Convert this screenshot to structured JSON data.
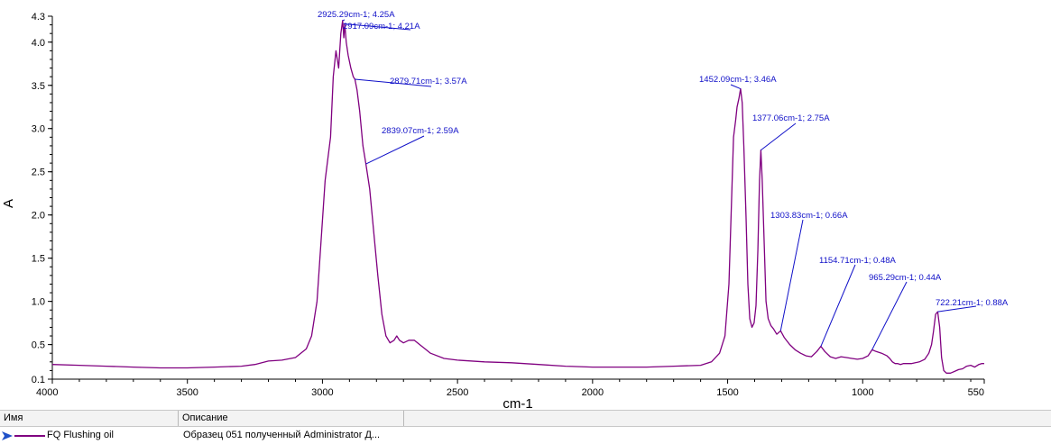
{
  "chart_data": {
    "type": "line",
    "xlabel": "cm-1",
    "ylabel": "A",
    "xlim": [
      4000,
      550
    ],
    "ylim": [
      0.1,
      4.3
    ],
    "x_reversed": true,
    "xticks": [
      "4000",
      "3500",
      "3000",
      "2500",
      "2000",
      "1500",
      "1000",
      "550"
    ],
    "xtick_values": [
      4000,
      3500,
      3000,
      2500,
      2000,
      1500,
      1000,
      550
    ],
    "yticks": [
      "0.1",
      "0.5",
      "1.0",
      "1.5",
      "2.0",
      "2.5",
      "3.0",
      "3.5",
      "4.0",
      "4.3"
    ],
    "ytick_values": [
      0.1,
      0.5,
      1.0,
      1.5,
      2.0,
      2.5,
      3.0,
      3.5,
      4.0,
      4.3
    ],
    "grid": false,
    "series": [
      {
        "name": "FQ Flushing oil",
        "color": "#800080",
        "points": [
          [
            4000,
            0.27
          ],
          [
            3900,
            0.26
          ],
          [
            3800,
            0.25
          ],
          [
            3700,
            0.24
          ],
          [
            3600,
            0.23
          ],
          [
            3500,
            0.23
          ],
          [
            3400,
            0.24
          ],
          [
            3300,
            0.25
          ],
          [
            3250,
            0.27
          ],
          [
            3200,
            0.31
          ],
          [
            3150,
            0.32
          ],
          [
            3100,
            0.35
          ],
          [
            3060,
            0.45
          ],
          [
            3040,
            0.6
          ],
          [
            3020,
            1.0
          ],
          [
            3005,
            1.7
          ],
          [
            2990,
            2.4
          ],
          [
            2970,
            2.9
          ],
          [
            2960,
            3.6
          ],
          [
            2950,
            3.9
          ],
          [
            2940,
            3.7
          ],
          [
            2932,
            4.1
          ],
          [
            2925.29,
            4.25
          ],
          [
            2921,
            4.05
          ],
          [
            2917.09,
            4.21
          ],
          [
            2912,
            4.0
          ],
          [
            2905,
            3.85
          ],
          [
            2895,
            3.7
          ],
          [
            2886,
            3.6
          ],
          [
            2879.71,
            3.57
          ],
          [
            2872,
            3.45
          ],
          [
            2862,
            3.2
          ],
          [
            2850,
            2.8
          ],
          [
            2839.07,
            2.59
          ],
          [
            2825,
            2.3
          ],
          [
            2810,
            1.8
          ],
          [
            2795,
            1.3
          ],
          [
            2780,
            0.85
          ],
          [
            2765,
            0.6
          ],
          [
            2750,
            0.52
          ],
          [
            2735,
            0.55
          ],
          [
            2725,
            0.6
          ],
          [
            2715,
            0.55
          ],
          [
            2700,
            0.52
          ],
          [
            2680,
            0.55
          ],
          [
            2660,
            0.55
          ],
          [
            2640,
            0.5
          ],
          [
            2620,
            0.45
          ],
          [
            2600,
            0.4
          ],
          [
            2550,
            0.34
          ],
          [
            2500,
            0.32
          ],
          [
            2400,
            0.3
          ],
          [
            2300,
            0.29
          ],
          [
            2200,
            0.27
          ],
          [
            2100,
            0.25
          ],
          [
            2000,
            0.24
          ],
          [
            1900,
            0.24
          ],
          [
            1800,
            0.24
          ],
          [
            1700,
            0.25
          ],
          [
            1600,
            0.26
          ],
          [
            1560,
            0.3
          ],
          [
            1530,
            0.4
          ],
          [
            1510,
            0.6
          ],
          [
            1495,
            1.2
          ],
          [
            1485,
            2.2
          ],
          [
            1478,
            2.9
          ],
          [
            1470,
            3.1
          ],
          [
            1465,
            3.25
          ],
          [
            1458,
            3.35
          ],
          [
            1452.09,
            3.46
          ],
          [
            1446,
            3.3
          ],
          [
            1440,
            2.8
          ],
          [
            1432,
            2.0
          ],
          [
            1425,
            1.2
          ],
          [
            1418,
            0.8
          ],
          [
            1410,
            0.7
          ],
          [
            1402,
            0.75
          ],
          [
            1395,
            0.95
          ],
          [
            1388,
            1.6
          ],
          [
            1382,
            2.4
          ],
          [
            1377.06,
            2.75
          ],
          [
            1372,
            2.4
          ],
          [
            1365,
            1.7
          ],
          [
            1358,
            1.0
          ],
          [
            1350,
            0.8
          ],
          [
            1340,
            0.72
          ],
          [
            1330,
            0.68
          ],
          [
            1318,
            0.62
          ],
          [
            1303.83,
            0.66
          ],
          [
            1290,
            0.58
          ],
          [
            1270,
            0.5
          ],
          [
            1250,
            0.44
          ],
          [
            1230,
            0.4
          ],
          [
            1210,
            0.37
          ],
          [
            1190,
            0.36
          ],
          [
            1170,
            0.42
          ],
          [
            1154.71,
            0.48
          ],
          [
            1140,
            0.42
          ],
          [
            1120,
            0.36
          ],
          [
            1100,
            0.34
          ],
          [
            1080,
            0.36
          ],
          [
            1060,
            0.35
          ],
          [
            1040,
            0.34
          ],
          [
            1020,
            0.33
          ],
          [
            1000,
            0.34
          ],
          [
            980,
            0.37
          ],
          [
            965.29,
            0.44
          ],
          [
            950,
            0.42
          ],
          [
            930,
            0.4
          ],
          [
            910,
            0.37
          ],
          [
            900,
            0.34
          ],
          [
            890,
            0.3
          ],
          [
            880,
            0.28
          ],
          [
            870,
            0.28
          ],
          [
            860,
            0.27
          ],
          [
            850,
            0.28
          ],
          [
            840,
            0.28
          ],
          [
            820,
            0.28
          ],
          [
            805,
            0.29
          ],
          [
            790,
            0.3
          ],
          [
            770,
            0.33
          ],
          [
            755,
            0.4
          ],
          [
            745,
            0.5
          ],
          [
            738,
            0.65
          ],
          [
            730,
            0.85
          ],
          [
            722.21,
            0.88
          ],
          [
            715,
            0.7
          ],
          [
            708,
            0.35
          ],
          [
            700,
            0.2
          ],
          [
            690,
            0.17
          ],
          [
            675,
            0.17
          ],
          [
            660,
            0.19
          ],
          [
            645,
            0.21
          ],
          [
            630,
            0.22
          ],
          [
            615,
            0.25
          ],
          [
            600,
            0.26
          ],
          [
            585,
            0.24
          ],
          [
            570,
            0.27
          ],
          [
            560,
            0.28
          ],
          [
            550,
            0.28
          ]
        ]
      }
    ],
    "annotations": [
      {
        "text": "2925.29cm-1; 4.25A",
        "x": 2925.29,
        "y": 4.25
      },
      {
        "text": "2917.09cm-1; 4.21A",
        "x": 2917.09,
        "y": 4.21
      },
      {
        "text": "2879.71cm-1; 3.57A",
        "x": 2879.71,
        "y": 3.57
      },
      {
        "text": "2839.07cm-1; 2.59A",
        "x": 2839.07,
        "y": 2.59
      },
      {
        "text": "1452.09cm-1; 3.46A",
        "x": 1452.09,
        "y": 3.46
      },
      {
        "text": "1377.06cm-1; 2.75A",
        "x": 1377.06,
        "y": 2.75
      },
      {
        "text": "1303.83cm-1; 0.66A",
        "x": 1303.83,
        "y": 0.66
      },
      {
        "text": "1154.71cm-1; 0.48A",
        "x": 1154.71,
        "y": 0.48
      },
      {
        "text": "965.29cm-1; 0.44A",
        "x": 965.29,
        "y": 0.44
      },
      {
        "text": "722.21cm-1; 0.88A",
        "x": 722.21,
        "y": 0.88
      }
    ]
  },
  "legend_table": {
    "headers": [
      "Имя",
      "Описание"
    ],
    "rows": [
      {
        "name": "FQ Flushing oil",
        "description": "Образец 051 полученный Administrator Д..."
      }
    ]
  }
}
